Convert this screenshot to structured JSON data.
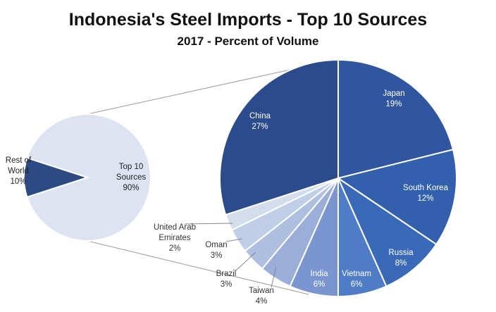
{
  "title": "Indonesia's Steel Imports - Top 10 Sources",
  "subtitle": "2017 - Percent of Volume",
  "chart_data": [
    {
      "type": "pie",
      "name": "overview",
      "slices": [
        {
          "label": "Top 10\nSources",
          "value": 90,
          "value_label": "90%",
          "color": "#dde3f0"
        },
        {
          "label": "Rest of\nWorld",
          "value": 10,
          "value_label": "10%",
          "color": "#2e4a85"
        }
      ]
    },
    {
      "type": "pie",
      "name": "top-10-breakdown",
      "slices": [
        {
          "label": "Japan",
          "value": 19,
          "value_label": "19%",
          "color": "#2f569e"
        },
        {
          "label": "South Korea",
          "value": 12,
          "value_label": "12%",
          "color": "#3360ad"
        },
        {
          "label": "Russia",
          "value": 8,
          "value_label": "8%",
          "color": "#3a69b8"
        },
        {
          "label": "Vietnam",
          "value": 6,
          "value_label": "6%",
          "color": "#4e7cc6"
        },
        {
          "label": "India",
          "value": 6,
          "value_label": "6%",
          "color": "#7a95cf"
        },
        {
          "label": "Taiwan",
          "value": 4,
          "value_label": "4%",
          "color": "#9aaed9"
        },
        {
          "label": "Brazil",
          "value": 3,
          "value_label": "3%",
          "color": "#aebfe0"
        },
        {
          "label": "Oman",
          "value": 3,
          "value_label": "3%",
          "color": "#c1cee7"
        },
        {
          "label": "United Arab\nEmirates",
          "value": 2,
          "value_label": "2%",
          "color": "#d3ddee"
        },
        {
          "label": "China",
          "value": 27,
          "value_label": "27%",
          "color": "#2b4b8c"
        }
      ]
    }
  ]
}
